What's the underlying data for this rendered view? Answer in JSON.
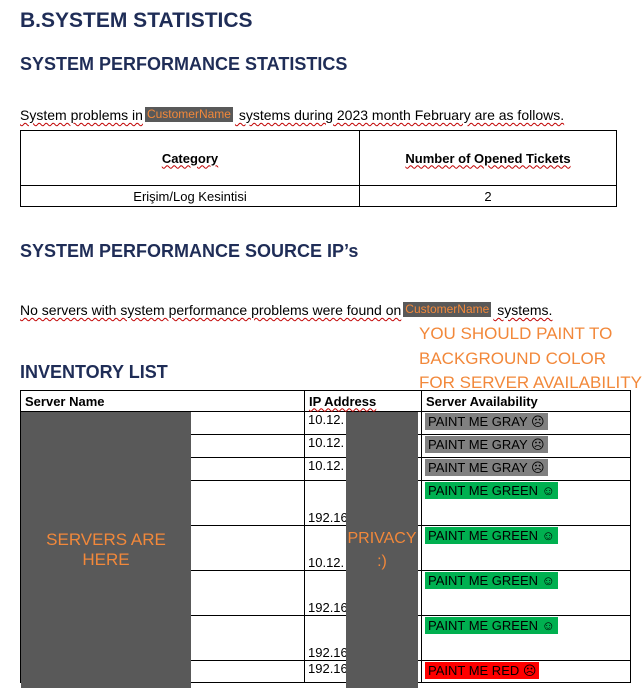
{
  "heading_main": "B.SYSTEM STATISTICS",
  "heading_perf": "SYSTEM PERFORMANCE STATISTICS",
  "para1": {
    "before": "System problems in",
    "tag": "CustomerName",
    "after": " systems during 2023 month February are as follows."
  },
  "cat_table": {
    "headers": [
      "Category",
      "Number of Opened Tickets"
    ],
    "row": [
      "Erişim/Log Kesintisi",
      "2"
    ]
  },
  "heading_source": "SYSTEM PERFORMANCE SOURCE IP’s",
  "para2": {
    "before": "No servers with system performance problems were found on",
    "tag": "CustomerName",
    "after": " systems."
  },
  "note": "YOU SHOULD PAINT TO BACKGROUND COLOR FOR SERVER AVAILABILITY",
  "heading_inventory": "INVENTORY LIST",
  "inventory": {
    "headers": [
      "Server Name",
      "IP Address",
      "Server Availability"
    ],
    "rows": [
      {
        "ip": "10.12.",
        "status": "PAINT ME GRAY ☹",
        "color": "gray"
      },
      {
        "ip": "10.12.",
        "status": "PAINT ME GRAY ☹",
        "color": "gray"
      },
      {
        "ip": "10.12.",
        "status": "PAINT ME GRAY ☹",
        "color": "gray"
      },
      {
        "ip": "192.16",
        "status": "PAINT ME GREEN ☺",
        "color": "green"
      },
      {
        "ip": "10.12.",
        "status": "PAINT ME GREEN ☺",
        "color": "green"
      },
      {
        "ip": "192.16",
        "status": "PAINT ME GREEN ☺",
        "color": "green"
      },
      {
        "ip": "192.16",
        "status": "PAINT ME GREEN ☺",
        "color": "green"
      },
      {
        "ip": "192.16",
        "status": "PAINT ME RED ☹",
        "color": "red"
      }
    ]
  },
  "redact_servers": "SERVERS ARE HERE",
  "redact_privacy": "PRIVACY :)"
}
